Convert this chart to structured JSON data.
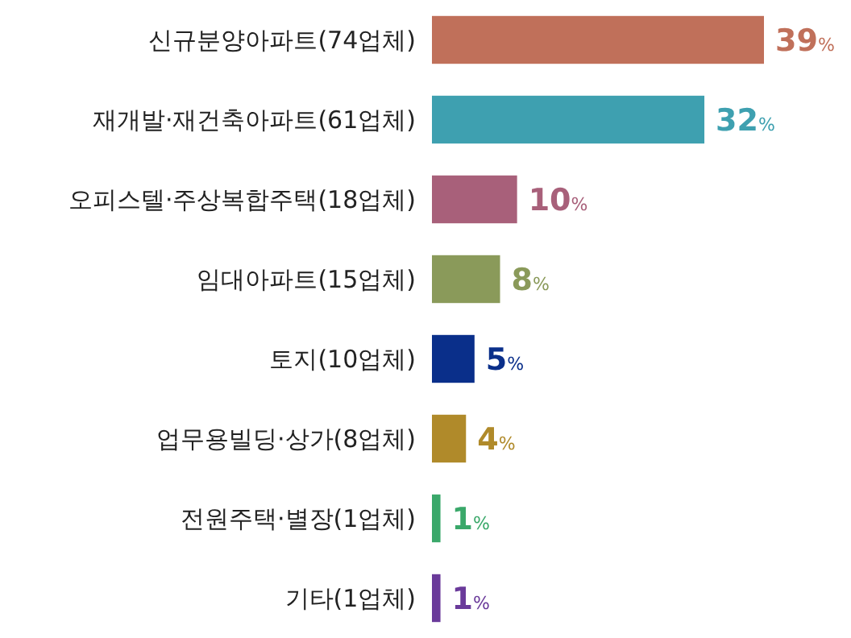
{
  "chart_data": {
    "type": "bar",
    "orientation": "horizontal",
    "categories": [
      "신규분양아파트(74업체)",
      "재개발·재건축아파트(61업체)",
      "오피스텔·주상복합주택(18업체)",
      "임대아파트(15업체)",
      "토지(10업체)",
      "업무용빌딩·상가(8업체)",
      "전원주택·별장(1업체)",
      "기타(1업체)"
    ],
    "values": [
      39,
      32,
      10,
      8,
      5,
      4,
      1,
      1
    ],
    "colors": [
      "#c0705a",
      "#3ea0b0",
      "#a8607a",
      "#8a9a5a",
      "#0a2f8a",
      "#b08a2a",
      "#3aa86a",
      "#6a3a9a"
    ],
    "value_labels": [
      "39%",
      "32%",
      "10%",
      "8%",
      "5%",
      "4%",
      "1%",
      "1%"
    ]
  }
}
